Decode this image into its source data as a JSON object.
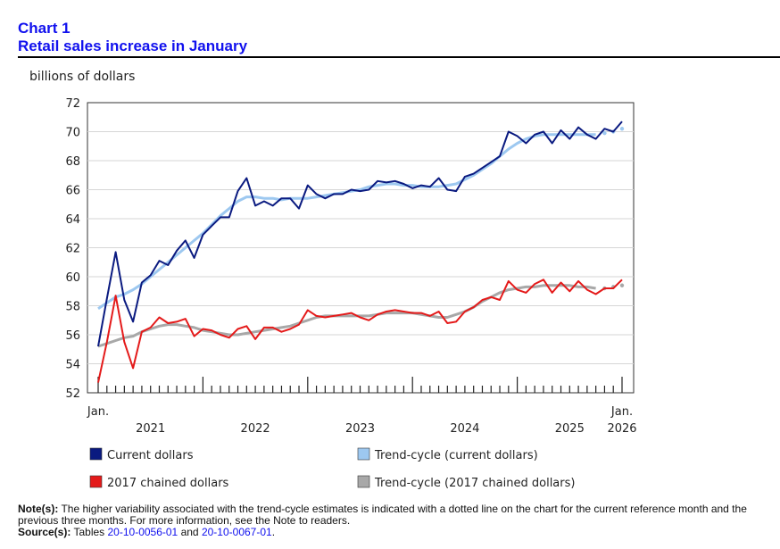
{
  "header": {
    "chart_number": "Chart 1",
    "title": "Retail sales increase in January"
  },
  "colors": {
    "current": "#0a1a80",
    "trend_current": "#9dc8f0",
    "chained": "#e41a1a",
    "trend_chained": "#a8a8a8"
  },
  "chart_data": {
    "type": "line",
    "title": "Retail sales increase in January",
    "ylabel": "billions of dollars",
    "xlabel": "",
    "ylim": [
      52,
      72
    ],
    "yticks": [
      "52",
      "54",
      "56",
      "58",
      "60",
      "62",
      "64",
      "66",
      "68",
      "70",
      "72"
    ],
    "x_start_label": "Jan.",
    "x_end_label": "Jan.",
    "x_end_year": "2026",
    "year_labels": [
      "2021",
      "2022",
      "2023",
      "2024",
      "2025"
    ],
    "months": 61,
    "series": [
      {
        "name": "Current dollars",
        "key": "current",
        "values": [
          55.2,
          58.5,
          61.7,
          58.4,
          56.9,
          59.6,
          60.1,
          61.1,
          60.8,
          61.8,
          62.5,
          61.3,
          62.9,
          63.5,
          64.1,
          64.1,
          65.9,
          66.8,
          64.9,
          65.2,
          64.9,
          65.4,
          65.4,
          64.7,
          66.3,
          65.7,
          65.4,
          65.7,
          65.7,
          66.0,
          65.9,
          66.0,
          66.6,
          66.5,
          66.6,
          66.4,
          66.1,
          66.3,
          66.2,
          66.8,
          66.0,
          65.9,
          66.9,
          67.1,
          67.5,
          67.9,
          68.3,
          70.0,
          69.7,
          69.2,
          69.8,
          70.0,
          69.2,
          70.1,
          69.5,
          70.3,
          69.8,
          69.5,
          70.2,
          70.0,
          70.7
        ]
      },
      {
        "name": "Trend-cycle (current dollars)",
        "key": "trend_current",
        "values": [
          57.8,
          58.2,
          58.6,
          58.8,
          59.1,
          59.5,
          60.0,
          60.5,
          61.0,
          61.5,
          62.0,
          62.5,
          63.0,
          63.6,
          64.2,
          64.7,
          65.2,
          65.5,
          65.5,
          65.4,
          65.4,
          65.3,
          65.4,
          65.4,
          65.4,
          65.5,
          65.6,
          65.7,
          65.8,
          65.9,
          66.0,
          66.2,
          66.3,
          66.4,
          66.4,
          66.3,
          66.3,
          66.2,
          66.2,
          66.2,
          66.3,
          66.4,
          66.7,
          67.0,
          67.4,
          67.8,
          68.3,
          68.8,
          69.2,
          69.5,
          69.7,
          69.8,
          69.8,
          69.8,
          69.8,
          69.8,
          69.8,
          69.8,
          69.9,
          70.0,
          70.2
        ]
      },
      {
        "name": "2017 chained dollars",
        "key": "chained",
        "values": [
          52.7,
          55.5,
          58.7,
          55.5,
          53.7,
          56.2,
          56.5,
          57.2,
          56.8,
          56.9,
          57.1,
          55.9,
          56.4,
          56.3,
          56.0,
          55.8,
          56.4,
          56.6,
          55.7,
          56.5,
          56.5,
          56.2,
          56.4,
          56.7,
          57.7,
          57.3,
          57.2,
          57.3,
          57.4,
          57.5,
          57.2,
          57.0,
          57.4,
          57.6,
          57.7,
          57.6,
          57.5,
          57.5,
          57.3,
          57.6,
          56.8,
          56.9,
          57.6,
          57.9,
          58.4,
          58.6,
          58.4,
          59.7,
          59.1,
          58.9,
          59.5,
          59.8,
          58.9,
          59.6,
          59.0,
          59.7,
          59.1,
          58.8,
          59.2,
          59.2,
          59.8
        ]
      },
      {
        "name": "Trend-cycle (2017 chained dollars)",
        "key": "trend_chained",
        "values": [
          55.2,
          55.4,
          55.6,
          55.8,
          55.9,
          56.2,
          56.4,
          56.6,
          56.7,
          56.7,
          56.6,
          56.5,
          56.3,
          56.2,
          56.1,
          56.0,
          56.0,
          56.1,
          56.2,
          56.3,
          56.4,
          56.5,
          56.6,
          56.8,
          57.0,
          57.2,
          57.3,
          57.3,
          57.3,
          57.3,
          57.3,
          57.3,
          57.4,
          57.5,
          57.5,
          57.5,
          57.5,
          57.4,
          57.3,
          57.2,
          57.2,
          57.4,
          57.6,
          57.9,
          58.3,
          58.6,
          58.9,
          59.1,
          59.2,
          59.3,
          59.3,
          59.4,
          59.4,
          59.4,
          59.4,
          59.3,
          59.3,
          59.2,
          59.2,
          59.3,
          59.4
        ]
      }
    ]
  },
  "legend": {
    "current": "Current dollars",
    "trend_current": "Trend-cycle (current dollars)",
    "chained": "2017 chained dollars",
    "trend_chained": "Trend-cycle (2017 chained dollars)"
  },
  "notes": {
    "note_label": "Note(s):",
    "note_text": "The higher variability associated with the trend-cycle estimates is indicated with a dotted line on the chart for the current reference month and the previous three months. For more information, see the Note to readers.",
    "source_label": "Source(s):",
    "source_prefix": "Tables",
    "table1": "20-10-0056-01",
    "source_and": "and",
    "table2": "20-10-0067-01",
    "source_end": "."
  }
}
